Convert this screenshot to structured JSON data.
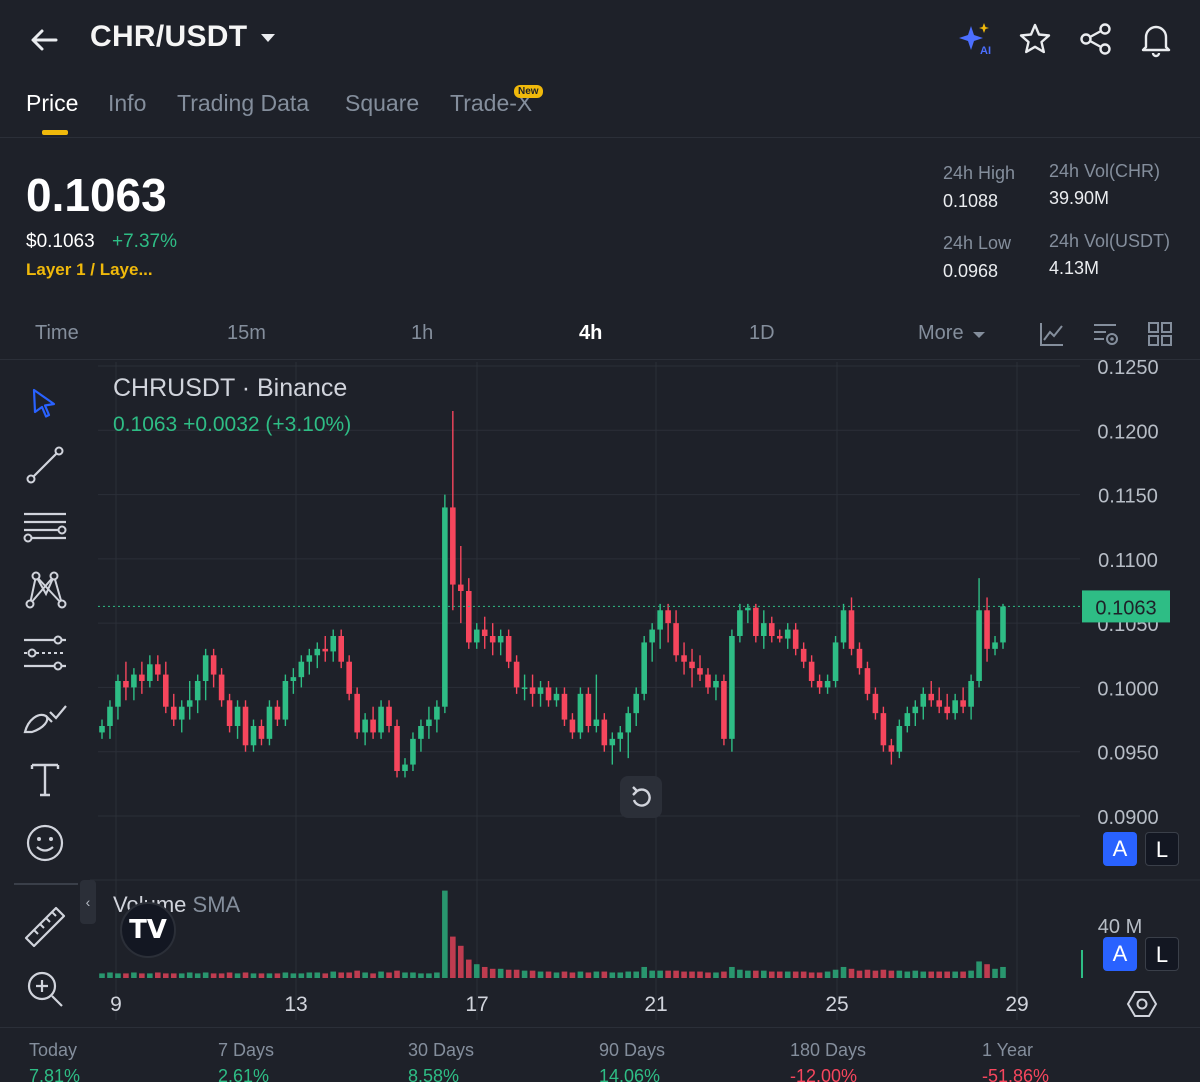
{
  "header": {
    "pair": "CHR/USDT",
    "icons": [
      "back-arrow-icon",
      "ai-sparkle-icon",
      "star-icon",
      "share-icon",
      "bell-icon"
    ]
  },
  "tabs": [
    {
      "label": "Price",
      "active": true
    },
    {
      "label": "Info"
    },
    {
      "label": "Trading Data"
    },
    {
      "label": "Square"
    },
    {
      "label": "Trade-X",
      "badge": "New"
    }
  ],
  "ticker": {
    "last_price": "0.1063",
    "usd_price": "$0.1063",
    "change_pct": "+7.37%",
    "category": "Layer 1 / Laye...",
    "high_label": "24h High",
    "high_value": "0.1088",
    "low_label": "24h Low",
    "low_value": "0.0968",
    "vol_base_label": "24h Vol(CHR)",
    "vol_base_value": "39.90M",
    "vol_quote_label": "24h Vol(USDT)",
    "vol_quote_value": "4.13M"
  },
  "intervals": {
    "items": [
      "Time",
      "15m",
      "1h",
      "4h",
      "1D",
      "More"
    ],
    "active": "4h"
  },
  "chart": {
    "symbol_title": "CHRUSDT · Binance",
    "ohlc_summary": "0.1063  +0.0032 (+3.10%)",
    "volume_title": "Volume",
    "volume_sub": "SMA",
    "logo_text": "TV",
    "current_price_tag": "0.1063",
    "autoscale_label": "A",
    "log_label": "L",
    "volume_axis_label": "40 M",
    "colors": {
      "up": "#2ebd85",
      "down": "#f6465d",
      "background": "#1e2129",
      "grid": "#2b2f38"
    }
  },
  "chart_data": {
    "type": "candlestick",
    "symbol": "CHRUSDT",
    "exchange": "Binance",
    "interval": "4h",
    "y_ticks": [
      0.09,
      0.095,
      0.1,
      0.105,
      0.11,
      0.115,
      0.12,
      0.125
    ],
    "y_tick_labels": [
      "0.0900",
      "0.0950",
      "0.1000",
      "0.1050",
      "0.1100",
      "0.1150",
      "0.1200",
      "0.1250"
    ],
    "ylim": [
      0.087,
      0.126
    ],
    "x_tick_labels": [
      "9",
      "13",
      "17",
      "21",
      "25",
      "29"
    ],
    "last_price": 0.1063,
    "candles": [
      [
        0.0965,
        0.0975,
        0.096,
        0.097
      ],
      [
        0.097,
        0.099,
        0.096,
        0.0985
      ],
      [
        0.0985,
        0.101,
        0.0975,
        0.1005
      ],
      [
        0.1005,
        0.102,
        0.099,
        0.1
      ],
      [
        0.1,
        0.1015,
        0.099,
        0.101
      ],
      [
        0.101,
        0.102,
        0.0995,
        0.1005
      ],
      [
        0.1005,
        0.1025,
        0.1,
        0.1018
      ],
      [
        0.1018,
        0.1025,
        0.1005,
        0.101
      ],
      [
        0.101,
        0.102,
        0.098,
        0.0985
      ],
      [
        0.0985,
        0.0995,
        0.097,
        0.0975
      ],
      [
        0.0975,
        0.099,
        0.0965,
        0.0985
      ],
      [
        0.0985,
        0.1005,
        0.0975,
        0.099
      ],
      [
        0.099,
        0.101,
        0.098,
        0.1005
      ],
      [
        0.1005,
        0.103,
        0.099,
        0.1025
      ],
      [
        0.1025,
        0.103,
        0.1,
        0.101
      ],
      [
        0.101,
        0.1015,
        0.0985,
        0.099
      ],
      [
        0.099,
        0.0995,
        0.0965,
        0.097
      ],
      [
        0.097,
        0.099,
        0.096,
        0.0985
      ],
      [
        0.0985,
        0.099,
        0.095,
        0.0955
      ],
      [
        0.0955,
        0.0975,
        0.095,
        0.097
      ],
      [
        0.097,
        0.0975,
        0.0955,
        0.096
      ],
      [
        0.096,
        0.099,
        0.0955,
        0.0985
      ],
      [
        0.0985,
        0.099,
        0.097,
        0.0975
      ],
      [
        0.0975,
        0.101,
        0.097,
        0.1005
      ],
      [
        0.1005,
        0.1015,
        0.0995,
        0.1008
      ],
      [
        0.1008,
        0.1025,
        0.1,
        0.102
      ],
      [
        0.102,
        0.103,
        0.101,
        0.1025
      ],
      [
        0.1025,
        0.1035,
        0.1015,
        0.103
      ],
      [
        0.103,
        0.104,
        0.102,
        0.1028
      ],
      [
        0.1028,
        0.1045,
        0.102,
        0.104
      ],
      [
        0.104,
        0.1045,
        0.1015,
        0.102
      ],
      [
        0.102,
        0.1025,
        0.099,
        0.0995
      ],
      [
        0.0995,
        0.1,
        0.096,
        0.0965
      ],
      [
        0.0965,
        0.098,
        0.0955,
        0.0975
      ],
      [
        0.0975,
        0.0985,
        0.096,
        0.0965
      ],
      [
        0.0965,
        0.099,
        0.096,
        0.0985
      ],
      [
        0.0985,
        0.099,
        0.0965,
        0.097
      ],
      [
        0.097,
        0.0975,
        0.093,
        0.0935
      ],
      [
        0.0935,
        0.0945,
        0.093,
        0.094
      ],
      [
        0.094,
        0.0965,
        0.0935,
        0.096
      ],
      [
        0.096,
        0.0975,
        0.095,
        0.097
      ],
      [
        0.097,
        0.0985,
        0.096,
        0.0975
      ],
      [
        0.0975,
        0.099,
        0.0965,
        0.0985
      ],
      [
        0.0985,
        0.115,
        0.098,
        0.114
      ],
      [
        0.114,
        0.1215,
        0.106,
        0.108
      ],
      [
        0.108,
        0.111,
        0.105,
        0.1075
      ],
      [
        0.1075,
        0.1085,
        0.103,
        0.1035
      ],
      [
        0.1035,
        0.105,
        0.103,
        0.1045
      ],
      [
        0.1045,
        0.1055,
        0.103,
        0.104
      ],
      [
        0.104,
        0.105,
        0.1025,
        0.1035
      ],
      [
        0.1035,
        0.1045,
        0.1025,
        0.104
      ],
      [
        0.104,
        0.1045,
        0.1015,
        0.102
      ],
      [
        0.102,
        0.1025,
        0.0995,
        0.1
      ],
      [
        0.1,
        0.101,
        0.099,
        0.1
      ],
      [
        0.1,
        0.101,
        0.0985,
        0.0995
      ],
      [
        0.0995,
        0.1005,
        0.0985,
        0.1
      ],
      [
        0.1,
        0.1005,
        0.0985,
        0.099
      ],
      [
        0.099,
        0.1,
        0.0985,
        0.0995
      ],
      [
        0.0995,
        0.1,
        0.097,
        0.0975
      ],
      [
        0.0975,
        0.098,
        0.096,
        0.0965
      ],
      [
        0.0965,
        0.1,
        0.096,
        0.0995
      ],
      [
        0.0995,
        0.1,
        0.0965,
        0.097
      ],
      [
        0.097,
        0.101,
        0.0965,
        0.0975
      ],
      [
        0.0975,
        0.098,
        0.095,
        0.0955
      ],
      [
        0.0955,
        0.0965,
        0.094,
        0.096
      ],
      [
        0.096,
        0.097,
        0.095,
        0.0965
      ],
      [
        0.0965,
        0.0985,
        0.0945,
        0.098
      ],
      [
        0.098,
        0.1,
        0.097,
        0.0995
      ],
      [
        0.0995,
        0.104,
        0.099,
        0.1035
      ],
      [
        0.1035,
        0.105,
        0.102,
        0.1045
      ],
      [
        0.1045,
        0.1065,
        0.103,
        0.106
      ],
      [
        0.106,
        0.1065,
        0.1035,
        0.105
      ],
      [
        0.105,
        0.106,
        0.102,
        0.1025
      ],
      [
        0.1025,
        0.1035,
        0.101,
        0.102
      ],
      [
        0.102,
        0.103,
        0.1,
        0.1015
      ],
      [
        0.1015,
        0.1025,
        0.1005,
        0.101
      ],
      [
        0.101,
        0.1015,
        0.0995,
        0.1
      ],
      [
        0.1,
        0.101,
        0.099,
        0.1005
      ],
      [
        0.1005,
        0.101,
        0.0955,
        0.096
      ],
      [
        0.096,
        0.1045,
        0.095,
        0.104
      ],
      [
        0.104,
        0.1065,
        0.1035,
        0.106
      ],
      [
        0.106,
        0.1065,
        0.105,
        0.1062
      ],
      [
        0.1062,
        0.1065,
        0.1035,
        0.104
      ],
      [
        0.104,
        0.106,
        0.103,
        0.105
      ],
      [
        0.105,
        0.1055,
        0.1035,
        0.104
      ],
      [
        0.104,
        0.1045,
        0.1035,
        0.1038
      ],
      [
        0.1038,
        0.105,
        0.103,
        0.1045
      ],
      [
        0.1045,
        0.105,
        0.1025,
        0.103
      ],
      [
        0.103,
        0.1035,
        0.1015,
        0.102
      ],
      [
        0.102,
        0.1025,
        0.1,
        0.1005
      ],
      [
        0.1005,
        0.101,
        0.0995,
        0.1
      ],
      [
        0.1,
        0.101,
        0.0995,
        0.1005
      ],
      [
        0.1005,
        0.104,
        0.1,
        0.1035
      ],
      [
        0.1035,
        0.1065,
        0.103,
        0.106
      ],
      [
        0.106,
        0.107,
        0.1025,
        0.103
      ],
      [
        0.103,
        0.1035,
        0.101,
        0.1015
      ],
      [
        0.1015,
        0.102,
        0.099,
        0.0995
      ],
      [
        0.0995,
        0.1,
        0.0975,
        0.098
      ],
      [
        0.098,
        0.0985,
        0.095,
        0.0955
      ],
      [
        0.0955,
        0.096,
        0.094,
        0.095
      ],
      [
        0.095,
        0.0975,
        0.0945,
        0.097
      ],
      [
        0.097,
        0.0985,
        0.0965,
        0.098
      ],
      [
        0.098,
        0.099,
        0.097,
        0.0985
      ],
      [
        0.0985,
        0.1,
        0.0975,
        0.0995
      ],
      [
        0.0995,
        0.1005,
        0.0985,
        0.099
      ],
      [
        0.099,
        0.1,
        0.098,
        0.0985
      ],
      [
        0.0985,
        0.0995,
        0.0975,
        0.098
      ],
      [
        0.098,
        0.0995,
        0.0975,
        0.099
      ],
      [
        0.099,
        0.1,
        0.098,
        0.0985
      ],
      [
        0.0985,
        0.101,
        0.0975,
        0.1005
      ],
      [
        0.1005,
        0.1085,
        0.1,
        0.106
      ],
      [
        0.106,
        0.107,
        0.102,
        0.103
      ],
      [
        0.103,
        0.104,
        0.1025,
        0.1035
      ],
      [
        0.1035,
        0.1065,
        0.103,
        0.1063
      ]
    ],
    "volume_axis_label": "40 M",
    "volume_rel": [
      0.05,
      0.06,
      0.05,
      0.05,
      0.06,
      0.05,
      0.05,
      0.06,
      0.05,
      0.05,
      0.05,
      0.06,
      0.05,
      0.06,
      0.05,
      0.05,
      0.06,
      0.05,
      0.06,
      0.05,
      0.05,
      0.05,
      0.05,
      0.06,
      0.05,
      0.05,
      0.06,
      0.06,
      0.05,
      0.07,
      0.06,
      0.06,
      0.08,
      0.06,
      0.05,
      0.07,
      0.06,
      0.08,
      0.06,
      0.06,
      0.05,
      0.05,
      0.06,
      0.95,
      0.45,
      0.35,
      0.2,
      0.15,
      0.12,
      0.1,
      0.1,
      0.09,
      0.09,
      0.08,
      0.08,
      0.07,
      0.07,
      0.06,
      0.07,
      0.06,
      0.07,
      0.06,
      0.07,
      0.07,
      0.06,
      0.06,
      0.07,
      0.07,
      0.12,
      0.08,
      0.08,
      0.08,
      0.08,
      0.07,
      0.07,
      0.07,
      0.06,
      0.06,
      0.07,
      0.12,
      0.09,
      0.08,
      0.08,
      0.08,
      0.07,
      0.07,
      0.07,
      0.07,
      0.07,
      0.06,
      0.06,
      0.07,
      0.09,
      0.12,
      0.1,
      0.08,
      0.09,
      0.08,
      0.09,
      0.08,
      0.08,
      0.07,
      0.08,
      0.07,
      0.07,
      0.07,
      0.07,
      0.07,
      0.07,
      0.08,
      0.18,
      0.15,
      0.1,
      0.12
    ]
  },
  "toolbar": {
    "tools": [
      "cursor-icon",
      "trendline-icon",
      "fib-retracement-icon",
      "pattern-icon",
      "prediction-icon",
      "brush-icon",
      "text-icon",
      "emoji-icon",
      "ruler-icon",
      "zoom-in-icon"
    ]
  },
  "performance": [
    {
      "label": "Today",
      "value": "7.81%",
      "dir": "up"
    },
    {
      "label": "7 Days",
      "value": "2.61%",
      "dir": "up"
    },
    {
      "label": "30 Days",
      "value": "8.58%",
      "dir": "up"
    },
    {
      "label": "90 Days",
      "value": "14.06%",
      "dir": "up"
    },
    {
      "label": "180 Days",
      "value": "-12.00%",
      "dir": "down"
    },
    {
      "label": "1 Year",
      "value": "-51.86%",
      "dir": "down"
    }
  ]
}
